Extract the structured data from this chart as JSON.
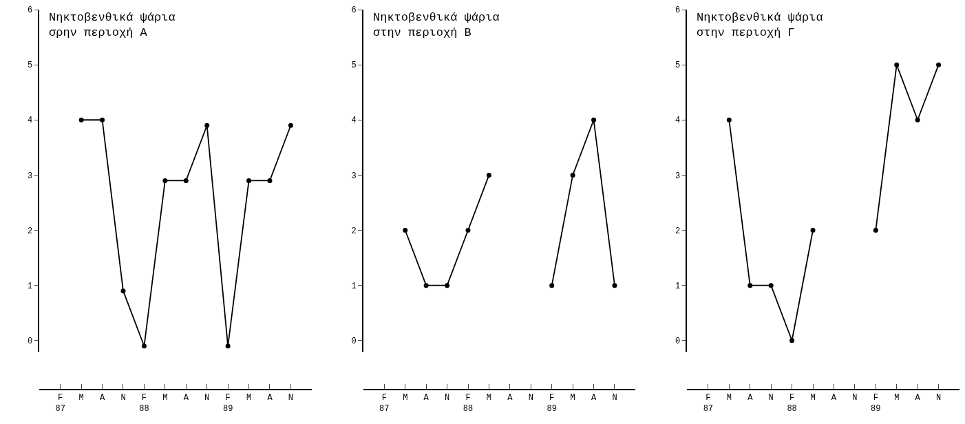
{
  "chart_data": [
    {
      "type": "line",
      "title": "Νηκτοβενθικά ψάρια\nσρην περιοχή Α",
      "categories": [
        "F\n87",
        "M",
        "A",
        "N",
        "F\n88",
        "M",
        "A",
        "N",
        "F\n89",
        "M",
        "A",
        "N"
      ],
      "series": [
        {
          "color": "#000000",
          "values": [
            null,
            4,
            4,
            0.9,
            -0.1,
            2.9,
            2.9,
            3.9,
            -0.1,
            2.9,
            2.9,
            3.9
          ]
        }
      ],
      "ylim": [
        -0.2,
        6
      ],
      "yticks": [
        0,
        1,
        2,
        3,
        4,
        5,
        6
      ],
      "marker": "circle",
      "line_style": "solid"
    },
    {
      "type": "line",
      "title": "Νηκτοβενθικά ψάρια\nστην περιοχή Β",
      "categories": [
        "F\n87",
        "M",
        "A",
        "N",
        "F\n88",
        "M",
        "A",
        "N",
        "F\n89",
        "M",
        "A",
        "N"
      ],
      "series": [
        {
          "color": "#000000",
          "values": [
            null,
            2,
            1,
            1,
            2,
            3,
            null,
            null,
            1,
            3,
            4,
            1
          ]
        }
      ],
      "ylim": [
        -0.2,
        6
      ],
      "yticks": [
        0,
        1,
        2,
        3,
        4,
        5,
        6
      ],
      "marker": "circle",
      "line_style": "solid"
    },
    {
      "type": "line",
      "title": "Νηκτοβενθικά ψάρια\nστην περιοχή Γ",
      "categories": [
        "F\n87",
        "M",
        "A",
        "N",
        "F\n88",
        "M",
        "A",
        "N",
        "F\n89",
        "M",
        "A",
        "N"
      ],
      "series": [
        {
          "color": "#000000",
          "values": [
            null,
            4,
            1,
            1,
            0,
            2,
            null,
            null,
            2,
            5,
            4,
            5
          ]
        }
      ],
      "ylim": [
        -0.2,
        6
      ],
      "yticks": [
        0,
        1,
        2,
        3,
        4,
        5,
        6
      ],
      "marker": "circle",
      "line_style": "solid"
    }
  ]
}
